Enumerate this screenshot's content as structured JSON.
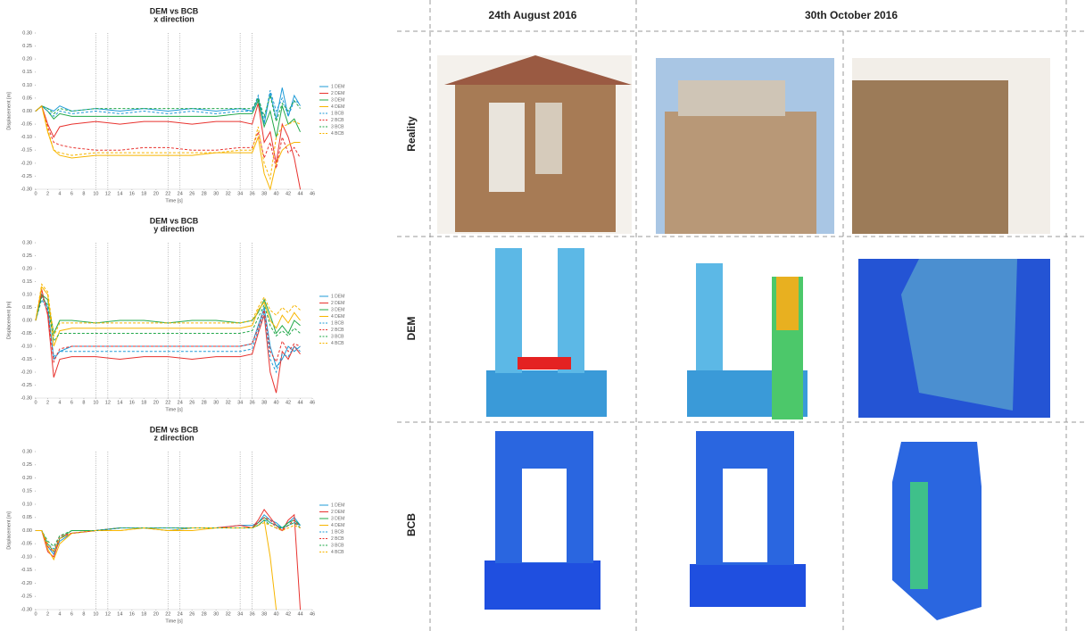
{
  "chart_data": [
    {
      "type": "line",
      "title": "DEM vs BCB",
      "subtitle": "x direction",
      "xlabel": "Time [s]",
      "ylabel": "Displacement [m]",
      "xlim": [
        0,
        46
      ],
      "ylim": [
        -0.3,
        0.3
      ],
      "xticks": [
        0,
        2,
        4,
        6,
        8,
        10,
        12,
        14,
        16,
        18,
        20,
        22,
        24,
        26,
        28,
        30,
        32,
        34,
        36,
        38,
        40,
        42,
        44,
        46
      ],
      "yticks": [
        {
          "value": 0.3,
          "label": "0.30"
        },
        0.25,
        {
          "value": 0.2,
          "label": "0.20"
        },
        0.15,
        {
          "value": 0.1,
          "label": "0.10"
        },
        0.05,
        {
          "value": 0,
          "label": "0.00"
        },
        -0.05,
        {
          "value": -0.1,
          "label": "-0.10"
        },
        -0.15,
        {
          "value": -0.2,
          "label": "-0.20"
        },
        -0.25,
        {
          "value": -0.3,
          "label": "-0.30"
        }
      ],
      "vlines": [
        10,
        12,
        22,
        24,
        34,
        36
      ],
      "x": [
        0,
        1,
        2,
        3,
        4,
        6,
        10,
        14,
        18,
        22,
        26,
        30,
        34,
        36,
        37,
        38,
        39,
        40,
        41,
        42,
        43,
        44
      ],
      "series": [
        {
          "name": "1 DEM",
          "color": "#1f9bd7",
          "dashed": false,
          "values": [
            0,
            0.02,
            0.01,
            0,
            0.02,
            0,
            0.01,
            0,
            0.01,
            0,
            0.01,
            0,
            0.01,
            0,
            0.05,
            -0.05,
            0.07,
            -0.03,
            0.09,
            -0.02,
            0.06,
            0.02
          ]
        },
        {
          "name": "2 DEM",
          "color": "#e8332f",
          "dashed": false,
          "values": [
            0,
            0.02,
            -0.05,
            -0.1,
            -0.06,
            -0.05,
            -0.04,
            -0.05,
            -0.04,
            -0.04,
            -0.05,
            -0.04,
            -0.04,
            -0.05,
            0.03,
            -0.12,
            -0.08,
            -0.2,
            -0.05,
            -0.1,
            -0.18,
            -0.3
          ]
        },
        {
          "name": "3 DEM",
          "color": "#22a84a",
          "dashed": false,
          "values": [
            0,
            0.02,
            0,
            -0.03,
            -0.01,
            -0.02,
            -0.02,
            -0.02,
            -0.02,
            -0.02,
            -0.02,
            -0.02,
            -0.01,
            -0.01,
            0.04,
            -0.06,
            0,
            -0.1,
            0.02,
            -0.05,
            -0.03,
            -0.08
          ]
        },
        {
          "name": "4 DEM",
          "color": "#f7b500",
          "dashed": false,
          "values": [
            0,
            0.02,
            -0.08,
            -0.15,
            -0.17,
            -0.18,
            -0.17,
            -0.17,
            -0.17,
            -0.17,
            -0.17,
            -0.16,
            -0.16,
            -0.16,
            -0.1,
            -0.24,
            -0.3,
            -0.2,
            -0.15,
            -0.13,
            -0.12,
            -0.12
          ]
        },
        {
          "name": "1 BCB",
          "color": "#1f9bd7",
          "dashed": true,
          "values": [
            0,
            0.02,
            0,
            -0.02,
            0,
            -0.01,
            0,
            -0.01,
            0,
            -0.01,
            0,
            -0.01,
            0,
            0,
            0.06,
            -0.04,
            0.08,
            0,
            0.05,
            -0.02,
            0.04,
            0.03
          ]
        },
        {
          "name": "2 BCB",
          "color": "#e8332f",
          "dashed": true,
          "values": [
            0,
            0.02,
            -0.06,
            -0.12,
            -0.13,
            -0.14,
            -0.15,
            -0.15,
            -0.14,
            -0.14,
            -0.15,
            -0.15,
            -0.14,
            -0.14,
            -0.08,
            -0.18,
            -0.12,
            -0.22,
            -0.1,
            -0.16,
            -0.14,
            -0.18
          ]
        },
        {
          "name": "3 BCB",
          "color": "#22a84a",
          "dashed": true,
          "values": [
            0,
            0.02,
            0.01,
            -0.01,
            0.01,
            0,
            0.01,
            0.01,
            0.01,
            0.01,
            0.01,
            0.01,
            0.01,
            0.01,
            0.05,
            -0.02,
            0.06,
            -0.04,
            0.03,
            0,
            0.04,
            0.01
          ]
        },
        {
          "name": "4 BCB",
          "color": "#f7b500",
          "dashed": true,
          "values": [
            0,
            0.02,
            -0.07,
            -0.15,
            -0.16,
            -0.17,
            -0.16,
            -0.16,
            -0.16,
            -0.16,
            -0.16,
            -0.16,
            -0.15,
            -0.15,
            -0.06,
            -0.2,
            -0.26,
            -0.1,
            -0.06,
            -0.05,
            -0.04,
            -0.05
          ]
        }
      ]
    },
    {
      "type": "line",
      "title": "DEM vs BCB",
      "subtitle": "y direction",
      "xlabel": "Time [s]",
      "ylabel": "Displacement [m]",
      "xlim": [
        0,
        46
      ],
      "ylim": [
        -0.3,
        0.3
      ],
      "xticks": [
        0,
        2,
        4,
        6,
        8,
        10,
        12,
        14,
        16,
        18,
        20,
        22,
        24,
        26,
        28,
        30,
        32,
        34,
        36,
        38,
        40,
        42,
        44,
        46
      ],
      "yticks": [
        {
          "value": 0.3,
          "label": "0.30"
        },
        0.25,
        {
          "value": 0.2,
          "label": "0.20"
        },
        0.15,
        {
          "value": 0.1,
          "label": "0.10"
        },
        0.05,
        {
          "value": 0,
          "label": "0.00"
        },
        -0.05,
        {
          "value": -0.1,
          "label": "-0.10"
        },
        -0.15,
        {
          "value": -0.2,
          "label": "-0.20"
        },
        -0.25,
        {
          "value": -0.3,
          "label": "-0.30"
        }
      ],
      "vlines": [
        10,
        12,
        22,
        24,
        34,
        36
      ],
      "x": [
        0,
        1,
        2,
        3,
        4,
        6,
        10,
        14,
        18,
        22,
        26,
        30,
        34,
        36,
        37,
        38,
        39,
        40,
        41,
        42,
        43,
        44
      ],
      "series": [
        {
          "name": "1 DEM",
          "color": "#1f9bd7",
          "dashed": false,
          "values": [
            0,
            0.1,
            0.05,
            -0.15,
            -0.12,
            -0.1,
            -0.1,
            -0.1,
            -0.1,
            -0.1,
            -0.1,
            -0.1,
            -0.1,
            -0.09,
            -0.02,
            0.05,
            -0.1,
            -0.18,
            -0.15,
            -0.1,
            -0.12,
            -0.1
          ]
        },
        {
          "name": "2 DEM",
          "color": "#e8332f",
          "dashed": false,
          "values": [
            0,
            0.12,
            0.02,
            -0.22,
            -0.15,
            -0.14,
            -0.14,
            -0.15,
            -0.14,
            -0.14,
            -0.15,
            -0.14,
            -0.14,
            -0.13,
            -0.05,
            0.02,
            -0.2,
            -0.28,
            -0.12,
            -0.15,
            -0.1,
            -0.13
          ]
        },
        {
          "name": "3 DEM",
          "color": "#22a84a",
          "dashed": false,
          "values": [
            0,
            0.1,
            0.08,
            -0.05,
            0,
            0,
            -0.01,
            0,
            0,
            -0.01,
            0,
            0,
            -0.01,
            0,
            0.03,
            0.08,
            0.02,
            -0.05,
            -0.02,
            -0.05,
            0,
            -0.02
          ]
        },
        {
          "name": "4 DEM",
          "color": "#f7b500",
          "dashed": false,
          "values": [
            0,
            0.13,
            0.1,
            -0.1,
            -0.04,
            -0.03,
            -0.03,
            -0.03,
            -0.03,
            -0.03,
            -0.03,
            -0.03,
            -0.03,
            -0.02,
            0.04,
            0.07,
            0,
            -0.03,
            0.02,
            -0.01,
            0.03,
            0
          ]
        },
        {
          "name": "1 BCB",
          "color": "#1f9bd7",
          "dashed": true,
          "values": [
            0,
            0.08,
            0.04,
            -0.14,
            -0.12,
            -0.12,
            -0.12,
            -0.12,
            -0.12,
            -0.12,
            -0.12,
            -0.12,
            -0.12,
            -0.11,
            -0.04,
            0.03,
            -0.15,
            -0.2,
            -0.13,
            -0.14,
            -0.1,
            -0.12
          ]
        },
        {
          "name": "2 BCB",
          "color": "#e8332f",
          "dashed": true,
          "values": [
            0,
            0.1,
            0.03,
            -0.16,
            -0.11,
            -0.1,
            -0.1,
            -0.1,
            -0.1,
            -0.1,
            -0.1,
            -0.1,
            -0.1,
            -0.09,
            -0.03,
            0.04,
            -0.12,
            -0.16,
            -0.08,
            -0.12,
            -0.09,
            -0.1
          ]
        },
        {
          "name": "3 BCB",
          "color": "#22a84a",
          "dashed": true,
          "values": [
            0,
            0.09,
            0.06,
            -0.08,
            -0.05,
            -0.05,
            -0.05,
            -0.05,
            -0.05,
            -0.05,
            -0.05,
            -0.05,
            -0.05,
            -0.04,
            0.01,
            0.06,
            -0.02,
            -0.06,
            -0.04,
            -0.06,
            -0.03,
            -0.05
          ]
        },
        {
          "name": "4 BCB",
          "color": "#f7b500",
          "dashed": true,
          "values": [
            0,
            0.14,
            0.11,
            -0.06,
            -0.01,
            -0.01,
            -0.01,
            -0.01,
            -0.01,
            -0.01,
            -0.01,
            -0.01,
            -0.01,
            0,
            0.05,
            0.09,
            0.04,
            0.02,
            0.05,
            0.03,
            0.06,
            0.04
          ]
        }
      ]
    },
    {
      "type": "line",
      "title": "DEM vs BCB",
      "subtitle": "z direction",
      "xlabel": "Time [s]",
      "ylabel": "Displacement [m]",
      "xlim": [
        0,
        46
      ],
      "ylim": [
        -0.3,
        0.3
      ],
      "xticks": [
        0,
        2,
        4,
        6,
        8,
        10,
        12,
        14,
        16,
        18,
        20,
        22,
        24,
        26,
        28,
        30,
        32,
        34,
        36,
        38,
        40,
        42,
        44,
        46
      ],
      "yticks": [
        {
          "value": 0.3,
          "label": "0.30"
        },
        0.25,
        {
          "value": 0.2,
          "label": "0.20"
        },
        0.15,
        {
          "value": 0.1,
          "label": "0.10"
        },
        0.05,
        {
          "value": 0,
          "label": "0.00"
        },
        -0.05,
        {
          "value": -0.1,
          "label": "-0.10"
        },
        -0.15,
        {
          "value": -0.2,
          "label": "-0.20"
        },
        -0.25,
        {
          "value": -0.3,
          "label": "-0.30"
        }
      ],
      "vlines": [
        10,
        12,
        22,
        24,
        34,
        36
      ],
      "x": [
        0,
        1,
        2,
        3,
        4,
        6,
        10,
        14,
        18,
        22,
        26,
        30,
        34,
        36,
        37,
        38,
        39,
        40,
        41,
        42,
        43,
        44
      ],
      "series": [
        {
          "name": "1 DEM",
          "color": "#1f9bd7",
          "dashed": false,
          "values": [
            0,
            0,
            -0.06,
            -0.09,
            -0.04,
            -0.01,
            0,
            0.01,
            0.01,
            0,
            0.01,
            0.01,
            0.02,
            0.02,
            0.03,
            0.06,
            0.04,
            0.03,
            0.01,
            0.03,
            0.05,
            0.02
          ]
        },
        {
          "name": "2 DEM",
          "color": "#e8332f",
          "dashed": false,
          "values": [
            0,
            0,
            -0.08,
            -0.1,
            -0.03,
            -0.01,
            0,
            0.01,
            0.01,
            0.01,
            0.01,
            0.01,
            0.02,
            0.01,
            0.04,
            0.08,
            0.05,
            0.02,
            0,
            0.04,
            0.06,
            -0.3
          ]
        },
        {
          "name": "3 DEM",
          "color": "#22a84a",
          "dashed": false,
          "values": [
            0,
            0,
            -0.05,
            -0.08,
            -0.03,
            0,
            0,
            0.01,
            0.01,
            0.01,
            0.01,
            0.01,
            0.01,
            0.01,
            0.03,
            0.05,
            0.03,
            0.02,
            0.01,
            0.03,
            0.04,
            0.02
          ]
        },
        {
          "name": "4 DEM",
          "color": "#f7b500",
          "dashed": false,
          "values": [
            0,
            0,
            -0.07,
            -0.11,
            -0.05,
            -0.01,
            0,
            0,
            0.01,
            0,
            0,
            0.01,
            0.01,
            0.01,
            0.02,
            0.04,
            -0.1,
            -0.3,
            null,
            null,
            null,
            null
          ]
        },
        {
          "name": "1 BCB",
          "color": "#1f9bd7",
          "dashed": true,
          "values": [
            0,
            0,
            -0.05,
            -0.07,
            -0.03,
            -0.01,
            0,
            0.01,
            0.01,
            0.01,
            0.01,
            0.01,
            0.01,
            0.01,
            0.02,
            0.04,
            0.03,
            0.02,
            0.01,
            0.02,
            0.03,
            0.02
          ]
        },
        {
          "name": "2 BCB",
          "color": "#e8332f",
          "dashed": true,
          "values": [
            0,
            0,
            -0.06,
            -0.08,
            -0.02,
            -0.01,
            0,
            0.01,
            0.01,
            0.01,
            0.01,
            0.01,
            0.01,
            0.01,
            0.03,
            0.05,
            0.04,
            0.01,
            0,
            0.02,
            0.04,
            0.01
          ]
        },
        {
          "name": "3 BCB",
          "color": "#22a84a",
          "dashed": true,
          "values": [
            0,
            0,
            -0.04,
            -0.06,
            -0.02,
            0,
            0,
            0.01,
            0.01,
            0.01,
            0.01,
            0.01,
            0.01,
            0.01,
            0.02,
            0.04,
            0.02,
            0.01,
            0.01,
            0.02,
            0.03,
            0.01
          ]
        },
        {
          "name": "4 BCB",
          "color": "#f7b500",
          "dashed": true,
          "values": [
            0,
            0,
            -0.05,
            -0.08,
            -0.03,
            -0.01,
            0,
            0,
            0.01,
            0,
            0.01,
            0.01,
            0.01,
            0.01,
            0.02,
            0.03,
            0.02,
            0.01,
            0,
            0.01,
            0.02,
            0.01
          ]
        }
      ]
    }
  ],
  "figure": {
    "columns": [
      "24th August 2016",
      "30th October 2016"
    ],
    "rows": [
      "Reality",
      "DEM",
      "BCB"
    ]
  }
}
